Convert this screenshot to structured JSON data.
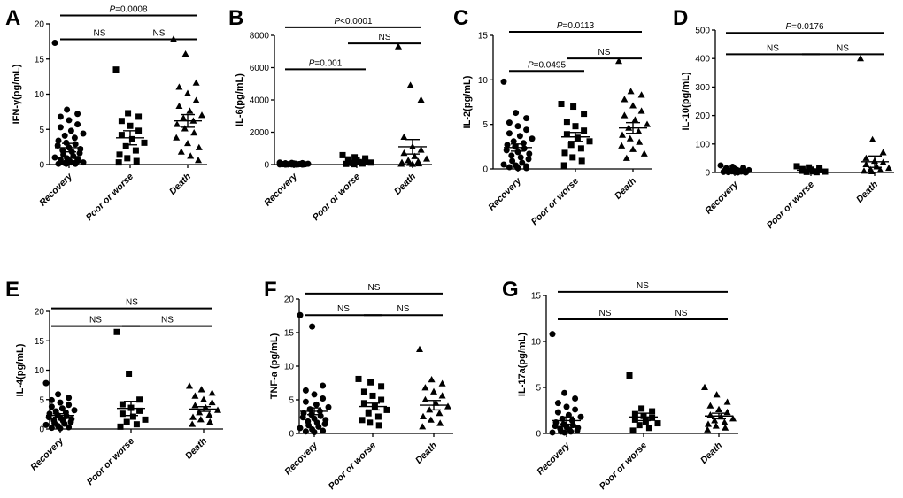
{
  "chart_data": [
    {
      "panel": "A",
      "type": "scatter",
      "ylabel": "IFN-γ(pg/mL)",
      "ylim": [
        0,
        20
      ],
      "yticks": [
        "0",
        "5",
        "10",
        "15",
        "20"
      ],
      "categories": [
        "Recovery",
        "Poor or worse",
        "Death"
      ],
      "groups": [
        {
          "name": "Recovery",
          "marker": "circle",
          "mean": 2.4,
          "sem": 0.6,
          "values": [
            17.3,
            7.8,
            7.2,
            6.8,
            6.3,
            5.7,
            5.3,
            4.8,
            4.4,
            4.1,
            3.8,
            3.4,
            3.1,
            2.9,
            2.7,
            2.4,
            2.2,
            2.0,
            1.8,
            1.6,
            1.4,
            1.2,
            1.0,
            0.9,
            0.8,
            0.7,
            0.6,
            0.5,
            0.4,
            0.3,
            0.3,
            0.2,
            0.2,
            0.1,
            0.1,
            0.1
          ]
        },
        {
          "name": "Poor or worse",
          "marker": "square",
          "mean": 3.8,
          "sem": 1.0,
          "values": [
            13.5,
            7.3,
            6.8,
            6.2,
            5.5,
            4.8,
            4.2,
            3.6,
            3.1,
            2.6,
            2.0,
            1.4,
            0.9,
            0.5,
            0.3
          ]
        },
        {
          "name": "Death",
          "marker": "triangle",
          "mean": 6.2,
          "sem": 0.9,
          "values": [
            17.8,
            15.7,
            11.6,
            11.0,
            10.1,
            9.1,
            8.3,
            7.6,
            7.0,
            6.6,
            6.2,
            5.7,
            5.1,
            4.5,
            3.8,
            3.0,
            2.4,
            1.8,
            1.2,
            0.6
          ]
        }
      ],
      "comparisons": [
        {
          "from": 0,
          "to": 2,
          "label": "P=0.0008",
          "y": 21.2
        },
        {
          "from": 0,
          "to": 1,
          "label": "NS",
          "y": 17.8
        },
        {
          "from": 1,
          "to": 2,
          "label": "NS",
          "y": 17.8
        }
      ]
    },
    {
      "panel": "B",
      "type": "scatter",
      "ylabel": "IL-6(pg/mL)",
      "ylim": [
        0,
        8000
      ],
      "yticks": [
        "0",
        "2000",
        "4000",
        "6000",
        "8000"
      ],
      "categories": [
        "Recovery",
        "Poor or worse",
        "Death"
      ],
      "groups": [
        {
          "name": "Recovery",
          "marker": "circle",
          "mean": 20,
          "sem": 8,
          "values": [
            120,
            100,
            90,
            80,
            70,
            60,
            55,
            50,
            45,
            40,
            35,
            30,
            28,
            25,
            22,
            20,
            18,
            15,
            12,
            10,
            8,
            6,
            5,
            4,
            3,
            2,
            2,
            1,
            1,
            1
          ]
        },
        {
          "name": "Poor or worse",
          "marker": "square",
          "mean": 180,
          "sem": 60,
          "values": [
            580,
            450,
            380,
            320,
            260,
            220,
            180,
            150,
            120,
            90,
            60,
            40,
            20
          ]
        },
        {
          "name": "Death",
          "marker": "triangle",
          "mean": 1100,
          "sem": 450,
          "values": [
            7300,
            4900,
            4000,
            1700,
            1100,
            900,
            700,
            500,
            350,
            250,
            180,
            120,
            80,
            50,
            30,
            20
          ]
        }
      ],
      "comparisons": [
        {
          "from": 0,
          "to": 2,
          "label": "P<0.0001",
          "y": 8500
        },
        {
          "from": 1,
          "to": 2,
          "label": "NS",
          "y": 7500
        },
        {
          "from": 0,
          "to": 1,
          "label": "P=0.001",
          "y": 5900
        }
      ]
    },
    {
      "panel": "C",
      "type": "scatter",
      "ylabel": "IL-2(pg/mL)",
      "ylim": [
        0,
        15
      ],
      "yticks": [
        "0",
        "5",
        "10",
        "15"
      ],
      "categories": [
        "Recovery",
        "Poor or worse",
        "Death"
      ],
      "groups": [
        {
          "name": "Recovery",
          "marker": "circle",
          "mean": 2.4,
          "sem": 0.4,
          "values": [
            9.8,
            6.3,
            5.7,
            5.2,
            4.8,
            4.4,
            4.0,
            3.7,
            3.4,
            3.1,
            2.9,
            2.7,
            2.5,
            2.3,
            2.1,
            1.9,
            1.7,
            1.5,
            1.3,
            1.1,
            0.9,
            0.7,
            0.5,
            0.4,
            0.3,
            0.2,
            0.1,
            0.1
          ]
        },
        {
          "name": "Poor or worse",
          "marker": "square",
          "mean": 3.6,
          "sem": 0.5,
          "values": [
            7.3,
            7.0,
            6.2,
            5.3,
            4.8,
            4.3,
            3.9,
            3.5,
            3.1,
            2.7,
            2.3,
            1.8,
            1.3,
            0.9,
            0.4
          ]
        },
        {
          "name": "Death",
          "marker": "triangle",
          "mean": 4.6,
          "sem": 0.6,
          "values": [
            12.1,
            8.7,
            8.3,
            7.8,
            7.1,
            6.5,
            6.0,
            5.5,
            5.0,
            4.6,
            4.2,
            3.8,
            3.4,
            3.0,
            2.6,
            2.2,
            1.7,
            1.2
          ]
        }
      ],
      "comparisons": [
        {
          "from": 0,
          "to": 2,
          "label": "P=0.0113",
          "y": 15.4
        },
        {
          "from": 0,
          "to": 1,
          "label": "P=0.0495",
          "y": 11.0
        },
        {
          "from": 1,
          "to": 2,
          "label": "NS",
          "y": 12.4
        }
      ]
    },
    {
      "panel": "D",
      "type": "scatter",
      "ylabel": "IL-10(pg/mL)",
      "ylim": [
        0,
        500
      ],
      "yticks": [
        "0",
        "100",
        "200",
        "300",
        "400",
        "500"
      ],
      "categories": [
        "Recovery",
        "Poor or worse",
        "Death"
      ],
      "groups": [
        {
          "name": "Recovery",
          "marker": "circle",
          "mean": 5,
          "sem": 2,
          "values": [
            25,
            20,
            17,
            15,
            13,
            11,
            10,
            9,
            8,
            7,
            6,
            5,
            4,
            3,
            2,
            2,
            1,
            1,
            0,
            0
          ]
        },
        {
          "name": "Poor or worse",
          "marker": "square",
          "mean": 8,
          "sem": 2,
          "values": [
            22,
            18,
            15,
            12,
            10,
            8,
            6,
            4,
            3,
            2,
            1
          ]
        },
        {
          "name": "Death",
          "marker": "triangle",
          "mean": 38,
          "sem": 20,
          "values": [
            400,
            115,
            70,
            50,
            40,
            35,
            28,
            20,
            15,
            10,
            8,
            5,
            3
          ]
        }
      ],
      "comparisons": [
        {
          "from": 0,
          "to": 2,
          "label": "P=0.0176",
          "y": 490
        },
        {
          "from": 0,
          "to": 1,
          "label": "NS",
          "y": 415
        },
        {
          "from": 1,
          "to": 2,
          "label": "NS",
          "y": 415
        }
      ]
    },
    {
      "panel": "E",
      "type": "scatter",
      "ylabel": "IL-4(pg/mL)",
      "ylim": [
        0,
        20
      ],
      "yticks": [
        "0",
        "5",
        "10",
        "15",
        "20"
      ],
      "categories": [
        "Recovery",
        "Poor or worse",
        "Death"
      ],
      "groups": [
        {
          "name": "Recovery",
          "marker": "circle",
          "mean": 2.3,
          "sem": 0.3,
          "values": [
            7.8,
            5.9,
            5.3,
            4.9,
            4.5,
            4.1,
            3.8,
            3.5,
            3.2,
            3.0,
            2.8,
            2.6,
            2.4,
            2.2,
            2.0,
            1.9,
            1.7,
            1.5,
            1.4,
            1.2,
            1.0,
            0.9,
            0.7,
            0.5,
            0.3,
            0.2,
            0.1
          ]
        },
        {
          "name": "Poor or worse",
          "marker": "square",
          "mean": 3.5,
          "sem": 1.2,
          "values": [
            16.5,
            9.4,
            5.0,
            4.2,
            3.6,
            3.1,
            2.6,
            2.1,
            1.6,
            1.2,
            0.8,
            0.4
          ]
        },
        {
          "name": "Death",
          "marker": "triangle",
          "mean": 3.4,
          "sem": 0.4,
          "values": [
            7.3,
            6.7,
            6.1,
            5.6,
            5.0,
            4.5,
            4.0,
            3.6,
            3.2,
            2.8,
            2.4,
            2.0,
            1.6,
            1.2,
            0.8
          ]
        }
      ],
      "comparisons": [
        {
          "from": 0,
          "to": 2,
          "label": "NS",
          "y": 20.5
        },
        {
          "from": 0,
          "to": 1,
          "label": "NS",
          "y": 17.5
        },
        {
          "from": 1,
          "to": 2,
          "label": "NS",
          "y": 17.5
        }
      ]
    },
    {
      "panel": "F",
      "type": "scatter",
      "ylabel": "TNF-a (pg/mL)",
      "ylim": [
        0,
        20
      ],
      "yticks": [
        "0",
        "5",
        "10",
        "15",
        "20"
      ],
      "categories": [
        "Recovery",
        "Poor or worse",
        "Death"
      ],
      "groups": [
        {
          "name": "Recovery",
          "marker": "circle",
          "mean": 3.3,
          "sem": 0.5,
          "values": [
            17.6,
            15.9,
            7.1,
            6.4,
            5.8,
            5.2,
            4.7,
            4.3,
            3.9,
            3.6,
            3.3,
            3.0,
            2.8,
            2.6,
            2.4,
            2.2,
            2.0,
            1.8,
            1.6,
            1.4,
            1.2,
            1.0,
            0.8,
            0.6,
            0.4,
            0.3,
            0.2
          ]
        },
        {
          "name": "Poor or worse",
          "marker": "square",
          "mean": 4.0,
          "sem": 0.5,
          "values": [
            8.1,
            7.6,
            7.0,
            6.2,
            5.6,
            5.0,
            4.5,
            4.0,
            3.5,
            3.0,
            2.5,
            2.0,
            1.6,
            1.2
          ]
        },
        {
          "name": "Death",
          "marker": "triangle",
          "mean": 4.2,
          "sem": 0.7,
          "values": [
            12.5,
            8.0,
            7.4,
            6.8,
            6.2,
            5.6,
            5.0,
            4.5,
            4.0,
            3.5,
            3.0,
            2.5,
            2.0,
            1.5,
            1.0
          ]
        }
      ],
      "comparisons": [
        {
          "from": 0,
          "to": 2,
          "label": "NS",
          "y": 20.8
        },
        {
          "from": 0,
          "to": 1,
          "label": "NS",
          "y": 17.6
        },
        {
          "from": 1,
          "to": 2,
          "label": "NS",
          "y": 17.6
        }
      ]
    },
    {
      "panel": "G",
      "type": "scatter",
      "ylabel": "IL-17a(pg/mL)",
      "ylim": [
        0,
        15
      ],
      "yticks": [
        "0",
        "5",
        "10",
        "15"
      ],
      "categories": [
        "Recovery",
        "Poor or worse",
        "Death"
      ],
      "groups": [
        {
          "name": "Recovery",
          "marker": "circle",
          "mean": 1.4,
          "sem": 0.4,
          "values": [
            10.8,
            4.4,
            3.8,
            3.3,
            2.9,
            2.6,
            2.3,
            2.0,
            1.8,
            1.6,
            1.4,
            1.2,
            1.0,
            0.9,
            0.8,
            0.7,
            0.6,
            0.5,
            0.4,
            0.3,
            0.2,
            0.2,
            0.1,
            0.1
          ]
        },
        {
          "name": "Poor or worse",
          "marker": "square",
          "mean": 1.8,
          "sem": 0.4,
          "values": [
            6.3,
            2.7,
            2.4,
            2.1,
            1.9,
            1.7,
            1.5,
            1.3,
            1.1,
            0.9,
            0.6,
            0.3
          ]
        },
        {
          "name": "Death",
          "marker": "triangle",
          "mean": 1.9,
          "sem": 0.3,
          "values": [
            5.0,
            4.2,
            3.4,
            3.0,
            2.6,
            2.3,
            2.0,
            1.8,
            1.6,
            1.4,
            1.2,
            1.0,
            0.8,
            0.6,
            0.4
          ]
        }
      ],
      "comparisons": [
        {
          "from": 0,
          "to": 2,
          "label": "NS",
          "y": 15.4
        },
        {
          "from": 0,
          "to": 1,
          "label": "NS",
          "y": 12.4
        },
        {
          "from": 1,
          "to": 2,
          "label": "NS",
          "y": 12.4
        }
      ]
    }
  ]
}
